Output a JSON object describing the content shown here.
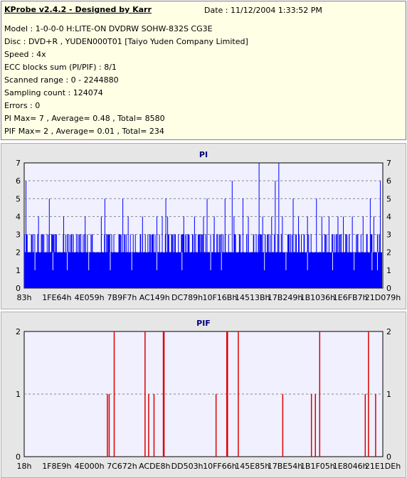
{
  "info": {
    "title": "KProbe v2.4.2 - Designed by Karr",
    "date": "Date : 11/12/2004 1:33:52 PM",
    "lines": [
      "Model : 1-0-0-0 H:LITE-ON DVDRW SOHW-832S  CG3E",
      "Disc : DVD+R , YUDEN000T01 [Taiyo Yuden Company Limited]",
      "Speed : 4x",
      "ECC blocks sum (PI/PIF) : 8/1",
      "Scanned range : 0 - 2244880",
      "Sampling count : 124074",
      "Errors : 0",
      "PI Max= 7 , Average= 0.48 , Total= 8580",
      "PIF Max= 2 , Average= 0.01 , Total= 234"
    ]
  },
  "colors": {
    "pi": "#0000ff",
    "pif": "#dd0000",
    "plot_bg": "#f0f0ff",
    "panel_bg": "#e6e6e6",
    "info_bg": "#ffffe6"
  },
  "chart_data": [
    {
      "type": "bar",
      "title": "PI",
      "ylim": [
        0,
        7
      ],
      "yticks": [
        "0",
        "1",
        "2",
        "3",
        "4",
        "5",
        "6",
        "7"
      ],
      "xticks": [
        "83h",
        "1FE64h",
        "4E059h",
        "7B9F7h",
        "AC149h",
        "DC789h",
        "10F16Bh",
        "14513Bh",
        "17B249h",
        "1B1036h",
        "1E6FB7h",
        "21D079h"
      ],
      "baseline": 2,
      "spikes": [
        [
          0.005,
          6
        ],
        [
          0.02,
          3
        ],
        [
          0.04,
          4
        ],
        [
          0.055,
          3
        ],
        [
          0.07,
          5
        ],
        [
          0.09,
          3
        ],
        [
          0.11,
          4
        ],
        [
          0.13,
          3
        ],
        [
          0.15,
          3
        ],
        [
          0.17,
          4
        ],
        [
          0.19,
          3
        ],
        [
          0.215,
          4
        ],
        [
          0.225,
          5
        ],
        [
          0.235,
          3
        ],
        [
          0.25,
          3
        ],
        [
          0.275,
          5
        ],
        [
          0.29,
          4
        ],
        [
          0.31,
          3
        ],
        [
          0.33,
          4
        ],
        [
          0.345,
          3
        ],
        [
          0.365,
          3
        ],
        [
          0.385,
          4
        ],
        [
          0.395,
          5
        ],
        [
          0.4,
          4
        ],
        [
          0.415,
          3
        ],
        [
          0.43,
          3
        ],
        [
          0.445,
          4
        ],
        [
          0.46,
          3
        ],
        [
          0.475,
          4
        ],
        [
          0.485,
          3
        ],
        [
          0.5,
          4
        ],
        [
          0.51,
          5
        ],
        [
          0.52,
          3
        ],
        [
          0.53,
          4
        ],
        [
          0.545,
          3
        ],
        [
          0.56,
          5
        ],
        [
          0.57,
          3
        ],
        [
          0.585,
          4
        ],
        [
          0.6,
          3
        ],
        [
          0.61,
          5
        ],
        [
          0.625,
          4
        ],
        [
          0.64,
          3
        ],
        [
          0.655,
          7
        ],
        [
          0.665,
          4
        ],
        [
          0.68,
          3
        ],
        [
          0.69,
          4
        ],
        [
          0.7,
          6
        ],
        [
          0.71,
          3
        ],
        [
          0.72,
          4
        ],
        [
          0.735,
          3
        ],
        [
          0.75,
          5
        ],
        [
          0.765,
          4
        ],
        [
          0.78,
          3
        ],
        [
          0.79,
          4
        ],
        [
          0.8,
          3
        ],
        [
          0.815,
          5
        ],
        [
          0.83,
          4
        ],
        [
          0.84,
          3
        ],
        [
          0.85,
          4
        ],
        [
          0.865,
          3
        ],
        [
          0.875,
          4
        ],
        [
          0.89,
          4
        ],
        [
          0.9,
          3
        ],
        [
          0.915,
          4
        ],
        [
          0.93,
          3
        ],
        [
          0.945,
          4
        ],
        [
          0.955,
          3
        ],
        [
          0.965,
          5
        ],
        [
          0.975,
          4
        ],
        [
          0.985,
          3
        ],
        [
          0.993,
          6
        ],
        [
          0.36,
          3
        ],
        [
          0.37,
          4
        ],
        [
          0.58,
          6
        ],
        [
          0.62,
          3
        ],
        [
          0.66,
          3
        ],
        [
          0.71,
          7
        ]
      ],
      "dips": [
        0.03,
        0.08,
        0.12,
        0.18,
        0.24,
        0.3,
        0.37,
        0.44,
        0.52,
        0.55,
        0.67,
        0.73,
        0.79,
        0.86,
        0.92,
        0.97,
        0.985
      ]
    },
    {
      "type": "bar",
      "title": "PIF",
      "ylim": [
        0,
        2
      ],
      "yticks": [
        "0",
        "1",
        "2"
      ],
      "xticks": [
        "18h",
        "1F8E9h",
        "4E000h",
        "7C672h",
        "ACDE8h",
        "DD503h",
        "10FF66h",
        "145E85h",
        "17BE54h",
        "1B1F05h",
        "1E8046h",
        "21E1DEh"
      ],
      "bars": [
        [
          0.232,
          1
        ],
        [
          0.237,
          1
        ],
        [
          0.251,
          2
        ],
        [
          0.337,
          2
        ],
        [
          0.347,
          1
        ],
        [
          0.362,
          1
        ],
        [
          0.388,
          2
        ],
        [
          0.39,
          2
        ],
        [
          0.535,
          1
        ],
        [
          0.565,
          2
        ],
        [
          0.567,
          2
        ],
        [
          0.597,
          2
        ],
        [
          0.721,
          1
        ],
        [
          0.801,
          1
        ],
        [
          0.812,
          1
        ],
        [
          0.824,
          2
        ],
        [
          0.951,
          1
        ],
        [
          0.96,
          2
        ],
        [
          0.98,
          1
        ]
      ]
    }
  ]
}
